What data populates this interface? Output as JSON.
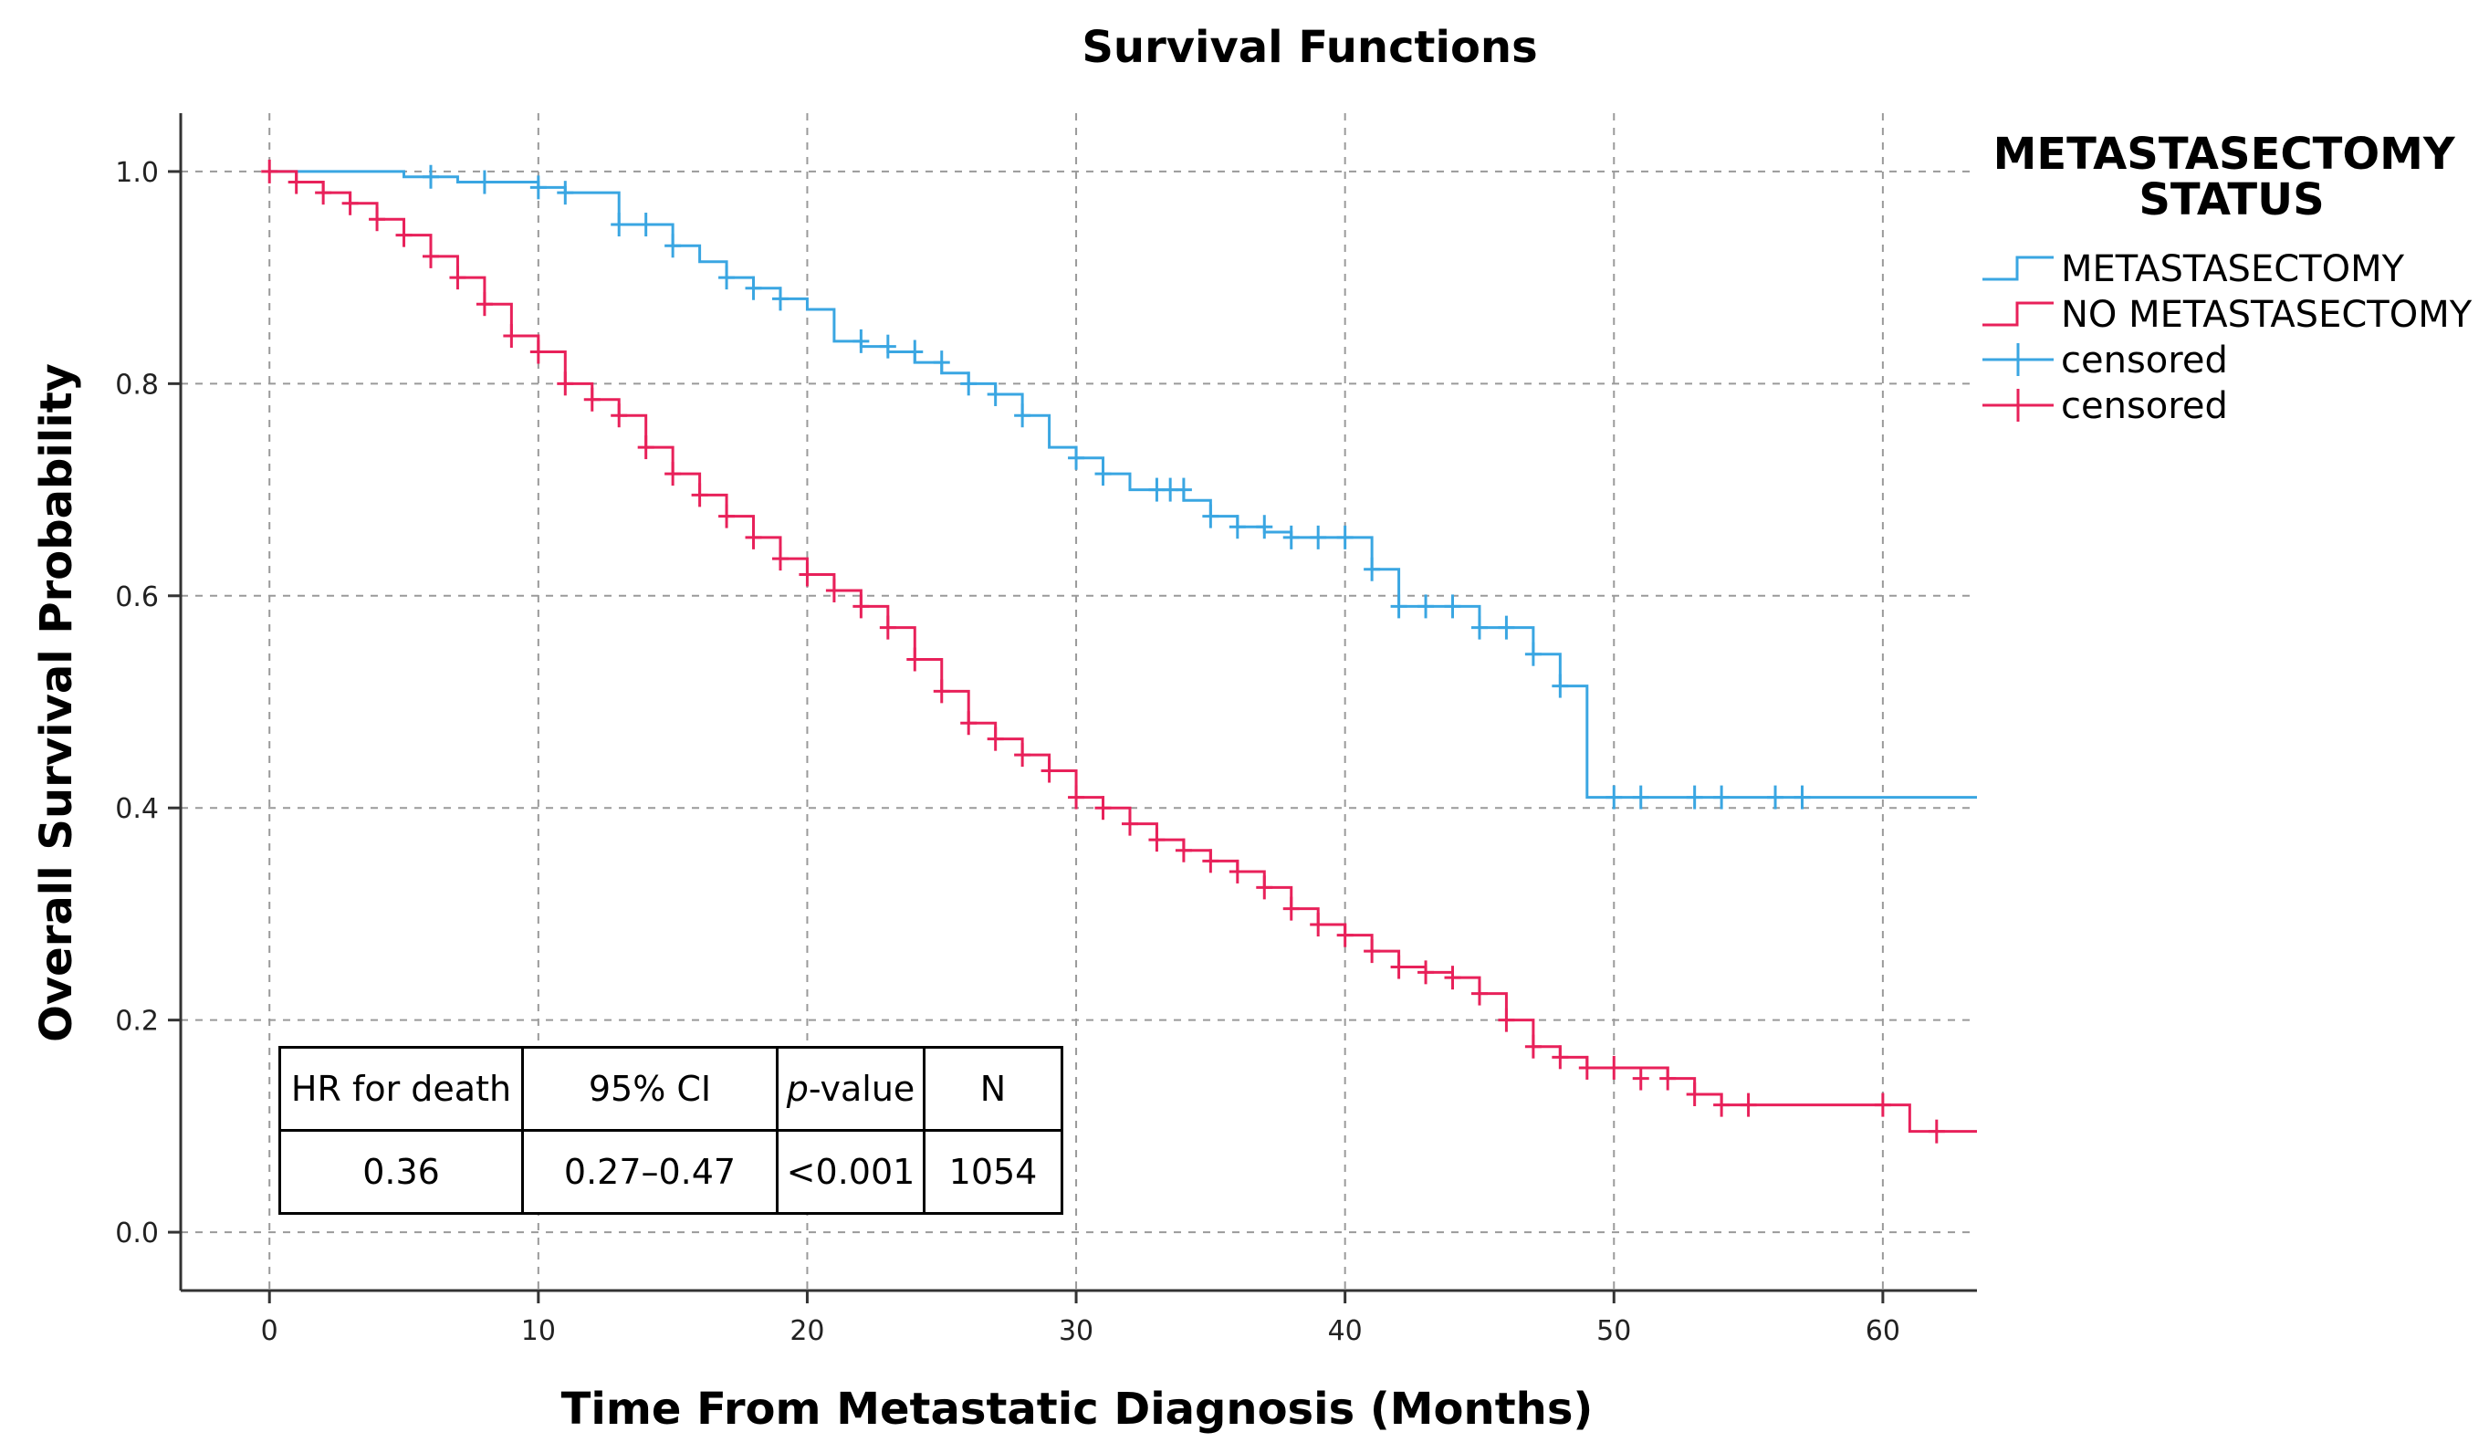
{
  "chart_data": {
    "type": "line",
    "subtype": "kaplan-meier-step",
    "title": "Survival Functions",
    "xlabel": "Time From Metastatic Diagnosis (Months)",
    "ylabel": "Overall Survival Probability",
    "xlim": [
      -3.3,
      63.5
    ],
    "ylim": [
      -0.055,
      1.055
    ],
    "xticks": [
      0,
      10,
      20,
      30,
      40,
      50,
      60
    ],
    "yticks": [
      0.0,
      0.2,
      0.4,
      0.6,
      0.8,
      1.0
    ],
    "ytick_labels": [
      "0.0",
      "0.2",
      "0.4",
      "0.6",
      "0.8",
      "1.0"
    ],
    "grid": true,
    "legend": {
      "title": "METASTASECTOMY\nSTATUS",
      "placement": "right",
      "entries": [
        {
          "label": "METASTASECTOMY",
          "type": "line",
          "color": "#3aa6e2"
        },
        {
          "label": "NO METASTASECTOMY",
          "type": "line",
          "color": "#e8215a"
        },
        {
          "label": "censored",
          "type": "cross",
          "color": "#3aa6e2"
        },
        {
          "label": "censored",
          "type": "cross",
          "color": "#e8215a"
        }
      ]
    },
    "series": [
      {
        "name": "METASTASECTOMY",
        "color": "#3aa6e2",
        "step_x": [
          0,
          5,
          7,
          10,
          11,
          13,
          15,
          16,
          17,
          18,
          19,
          20,
          21,
          22,
          23,
          24,
          25,
          26,
          27,
          28,
          29,
          30,
          31,
          32,
          34,
          35,
          36,
          37,
          38,
          41,
          42,
          45,
          47,
          48,
          49,
          63.5
        ],
        "step_y": [
          1.0,
          0.995,
          0.99,
          0.985,
          0.98,
          0.95,
          0.93,
          0.915,
          0.9,
          0.89,
          0.88,
          0.87,
          0.84,
          0.835,
          0.83,
          0.82,
          0.81,
          0.8,
          0.79,
          0.77,
          0.74,
          0.73,
          0.715,
          0.7,
          0.69,
          0.675,
          0.665,
          0.66,
          0.655,
          0.625,
          0.59,
          0.57,
          0.545,
          0.515,
          0.41,
          0.41
        ],
        "censored_x": [
          6,
          8,
          10,
          11,
          13,
          14,
          15,
          17,
          18,
          19,
          22,
          23,
          24,
          25,
          26,
          27,
          28,
          30,
          31,
          33,
          33.5,
          34,
          35,
          36,
          37,
          38,
          39,
          40,
          41,
          42,
          43,
          44,
          45,
          46,
          47,
          48,
          50,
          51,
          53,
          54,
          56,
          57
        ],
        "censored_y": [
          0.995,
          0.99,
          0.985,
          0.98,
          0.95,
          0.95,
          0.93,
          0.9,
          0.89,
          0.88,
          0.84,
          0.835,
          0.83,
          0.82,
          0.8,
          0.79,
          0.77,
          0.73,
          0.715,
          0.7,
          0.7,
          0.7,
          0.675,
          0.665,
          0.665,
          0.655,
          0.655,
          0.655,
          0.625,
          0.59,
          0.59,
          0.59,
          0.57,
          0.57,
          0.545,
          0.515,
          0.41,
          0.41,
          0.41,
          0.41,
          0.41,
          0.41
        ]
      },
      {
        "name": "NO METASTASECTOMY",
        "color": "#e8215a",
        "step_x": [
          0,
          1,
          2,
          3,
          4,
          5,
          6,
          7,
          8,
          9,
          10,
          11,
          12,
          13,
          14,
          15,
          16,
          17,
          18,
          19,
          20,
          21,
          22,
          23,
          24,
          25,
          26,
          27,
          28,
          29,
          30,
          31,
          32,
          33,
          34,
          35,
          36,
          37,
          38,
          39,
          40,
          41,
          42,
          43,
          44,
          45,
          46,
          47,
          48,
          49,
          52,
          53,
          54,
          61,
          63.5
        ],
        "step_y": [
          1.0,
          0.99,
          0.98,
          0.97,
          0.955,
          0.94,
          0.92,
          0.9,
          0.875,
          0.845,
          0.83,
          0.8,
          0.785,
          0.77,
          0.74,
          0.715,
          0.695,
          0.675,
          0.655,
          0.635,
          0.62,
          0.605,
          0.59,
          0.57,
          0.54,
          0.51,
          0.48,
          0.465,
          0.45,
          0.435,
          0.41,
          0.4,
          0.385,
          0.37,
          0.36,
          0.35,
          0.34,
          0.325,
          0.305,
          0.29,
          0.28,
          0.265,
          0.25,
          0.245,
          0.24,
          0.225,
          0.2,
          0.175,
          0.165,
          0.155,
          0.145,
          0.13,
          0.12,
          0.095,
          0.095
        ],
        "censored_x": [
          0,
          1,
          2,
          3,
          4,
          5,
          6,
          7,
          8,
          9,
          10,
          11,
          12,
          13,
          14,
          15,
          16,
          17,
          18,
          19,
          20,
          21,
          22,
          23,
          24,
          25,
          26,
          27,
          28,
          29,
          30,
          31,
          32,
          33,
          34,
          35,
          36,
          37,
          38,
          39,
          40,
          41,
          42,
          43,
          44,
          45,
          46,
          47,
          48,
          49,
          50,
          51,
          52,
          53,
          54,
          55,
          60,
          62
        ],
        "censored_y": [
          1.0,
          0.99,
          0.98,
          0.97,
          0.955,
          0.94,
          0.92,
          0.9,
          0.875,
          0.845,
          0.83,
          0.8,
          0.785,
          0.77,
          0.74,
          0.715,
          0.695,
          0.675,
          0.655,
          0.635,
          0.62,
          0.605,
          0.59,
          0.57,
          0.54,
          0.51,
          0.48,
          0.465,
          0.45,
          0.435,
          0.41,
          0.4,
          0.385,
          0.37,
          0.36,
          0.35,
          0.34,
          0.325,
          0.305,
          0.29,
          0.28,
          0.265,
          0.25,
          0.245,
          0.24,
          0.225,
          0.2,
          0.175,
          0.165,
          0.155,
          0.155,
          0.145,
          0.145,
          0.13,
          0.12,
          0.12,
          0.12,
          0.095
        ]
      }
    ],
    "table": {
      "headers": [
        "HR for death",
        "95% CI",
        "p-value",
        "N"
      ],
      "header_p": "p",
      "header_value": "-value",
      "values": [
        "0.36",
        "0.27–0.47",
        "<0.001",
        "1054"
      ]
    }
  }
}
